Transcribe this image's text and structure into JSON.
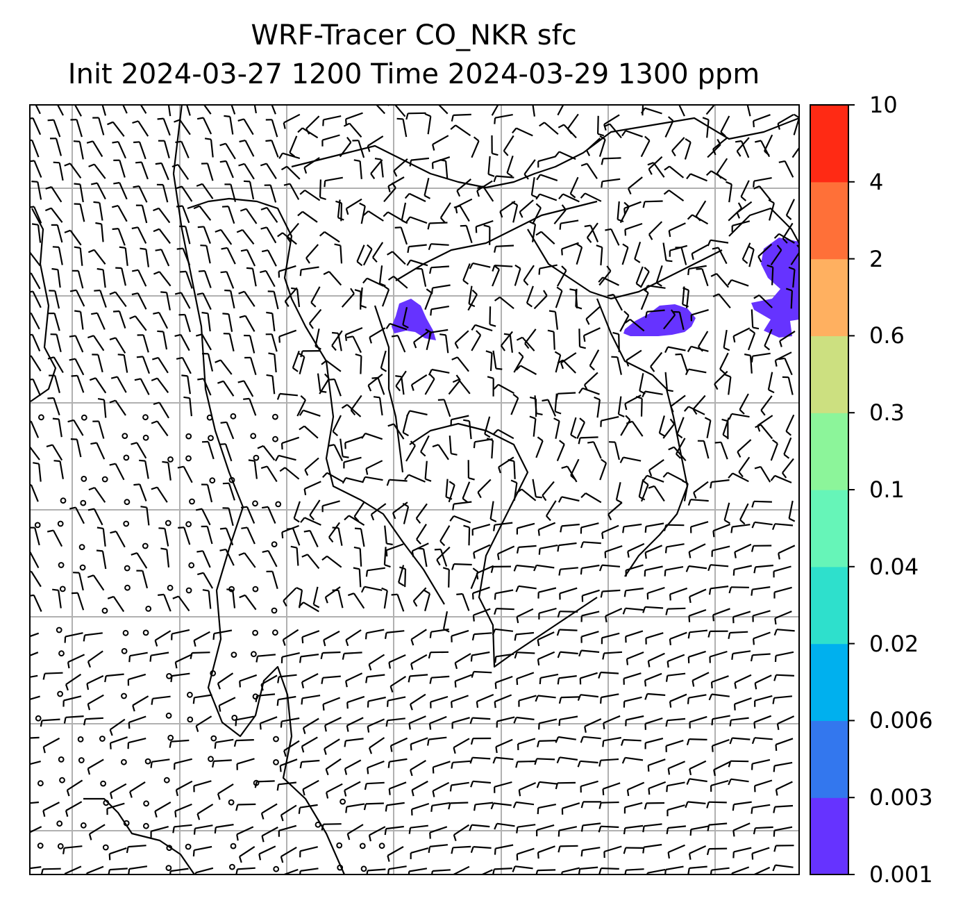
{
  "title": {
    "line1": "WRF-Tracer CO_NKR sfc",
    "line2": "Init 2024-03-27 1200 Time 2024-03-29 1300 ppm"
  },
  "colorbar": {
    "levels": [
      "0.001",
      "0.003",
      "0.006",
      "0.02",
      "0.04",
      "0.1",
      "0.3",
      "0.6",
      "2",
      "4",
      "10"
    ],
    "colors": [
      "#6633ff",
      "#3377ee",
      "#00b0ee",
      "#2ee0cc",
      "#66f5b8",
      "#8cf59a",
      "#cce080",
      "#ffb060",
      "#ff7038",
      "#ff2a14"
    ]
  },
  "plumes": [
    {
      "name": "tracer-plume-west",
      "level": "0.001",
      "color": "#6633ff"
    },
    {
      "name": "tracer-plume-central",
      "level": "0.001",
      "color": "#6633ff"
    },
    {
      "name": "tracer-plume-east",
      "level": "0.001",
      "color": "#6633ff"
    }
  ],
  "colors": {
    "grid": "#b0b0b0",
    "coast": "#000000",
    "barb": "#000000"
  }
}
